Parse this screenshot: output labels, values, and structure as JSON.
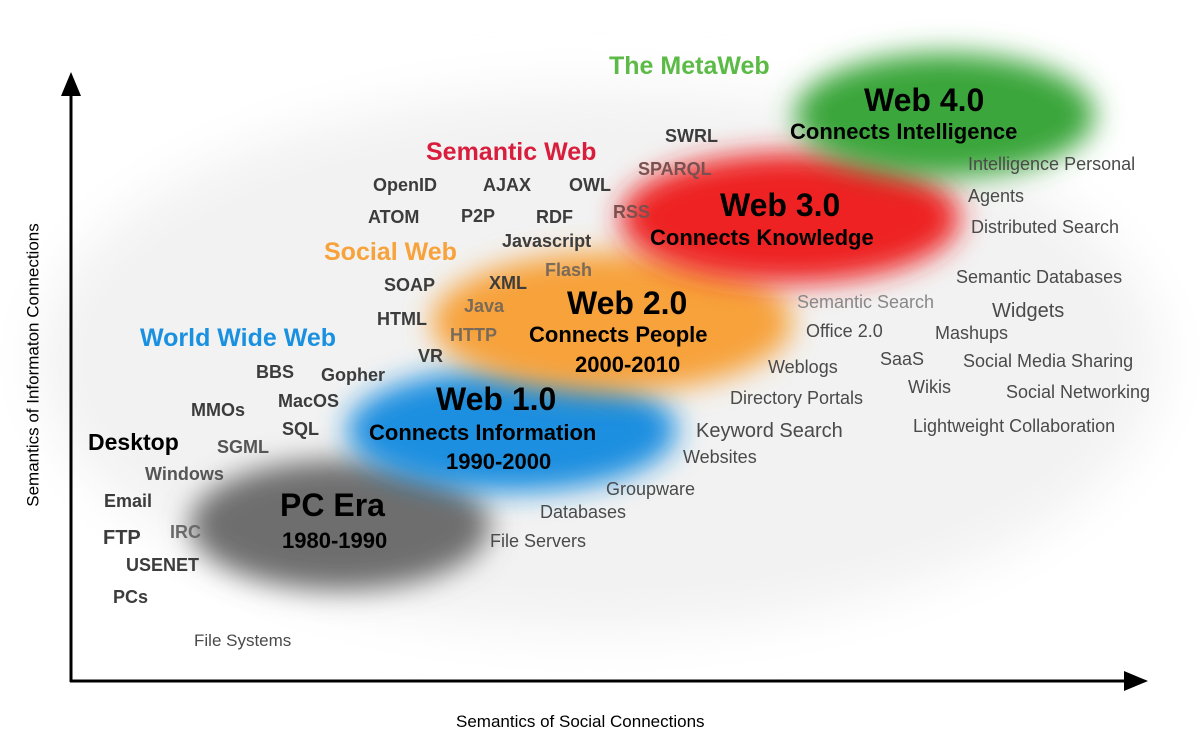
{
  "axes": {
    "x_label": "Semantics of Social Connections",
    "y_label": "Semantics of Informaton Connections"
  },
  "eras": [
    {
      "title": "PC Era",
      "subtitle": "1980-1990",
      "color": "#6e6e6e"
    },
    {
      "title": "Web 1.0",
      "subtitle": "Connects Information",
      "years": "1990-2000",
      "color": "#1a8fe0"
    },
    {
      "title": "Web 2.0",
      "subtitle": "Connects People",
      "years": "2000-2010",
      "color": "#f7a23a"
    },
    {
      "title": "Web 3.0",
      "subtitle": "Connects Knowledge",
      "color": "#ee2222"
    },
    {
      "title": "Web 4.0",
      "subtitle": "Connects Intelligence",
      "color": "#3aa63a"
    }
  ],
  "web_labels": {
    "desktop": {
      "text": "Desktop",
      "color": "#000000"
    },
    "world_wide_web": {
      "text": "World Wide Web",
      "color": "#1a90e0"
    },
    "social_web": {
      "text": "Social Web",
      "color": "#f7a23a"
    },
    "semantic_web": {
      "text": "Semantic Web",
      "color": "#d81e3c"
    },
    "metaweb": {
      "text": "The MetaWeb",
      "color": "#5cba47"
    }
  },
  "technologies": [
    "Email",
    "FTP",
    "IRC",
    "USENET",
    "PCs",
    "Windows",
    "SGML",
    "MMOs",
    "BBS",
    "MacOS",
    "SQL",
    "Gopher",
    "VR",
    "HTML",
    "SOAP",
    "HTTP",
    "Java",
    "XML",
    "Flash",
    "Javascript",
    "ATOM",
    "P2P",
    "RDF",
    "RSS",
    "OpenID",
    "AJAX",
    "OWL",
    "SPARQL",
    "SWRL"
  ],
  "services": [
    "File Systems",
    "File Servers",
    "Databases",
    "Groupware",
    "Websites",
    "Keyword Search",
    "Directory Portals",
    "Weblogs",
    "Office 2.0",
    "Semantic Search",
    "SaaS",
    "Wikis",
    "Mashups",
    "Widgets",
    "Semantic Databases",
    "Social Media Sharing",
    "Social Networking",
    "Lightweight Collaboration",
    "Distributed Search",
    "Intelligence Personal",
    "Agents"
  ]
}
